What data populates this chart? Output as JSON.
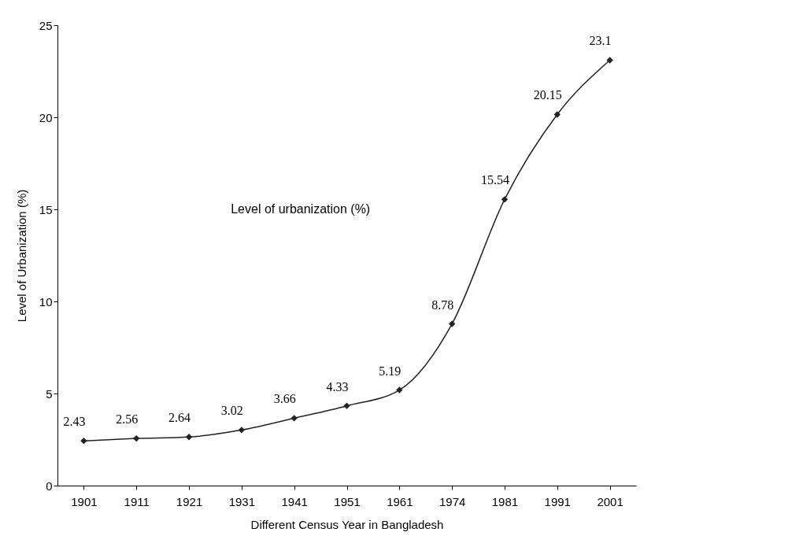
{
  "chart_data": {
    "type": "line",
    "title": "Level of urbanization (%)",
    "xlabel": "Different  Census Year in Bangladesh",
    "ylabel": "Level of Urbanization (%)",
    "categories": [
      "1901",
      "1911",
      "1921",
      "1931",
      "1941",
      "1951",
      "1961",
      "1974",
      "1981",
      "1991",
      "2001"
    ],
    "series": [
      {
        "color": "#222222",
        "values": [
          2.43,
          2.56,
          2.64,
          3.02,
          3.66,
          4.33,
          5.19,
          8.78,
          15.54,
          20.15,
          23.1
        ]
      }
    ],
    "ylim": [
      0,
      25
    ],
    "yticks": [
      0,
      5,
      10,
      15,
      20,
      25
    ],
    "grid": false,
    "marker": "diamond",
    "line_style": "solid",
    "data_labels": true
  }
}
